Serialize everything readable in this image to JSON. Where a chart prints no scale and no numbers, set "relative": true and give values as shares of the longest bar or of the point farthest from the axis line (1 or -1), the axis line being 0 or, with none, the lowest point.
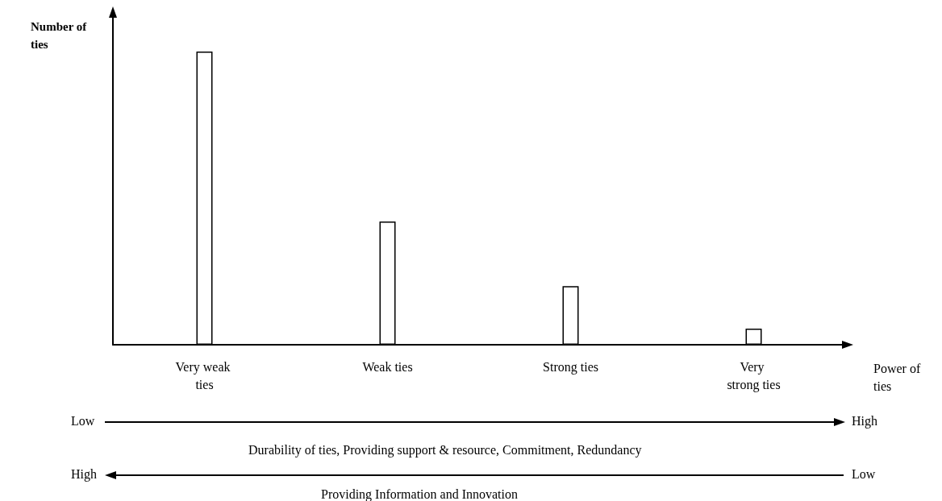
{
  "chart_data": {
    "type": "bar",
    "relative": true,
    "xlabel": "Power of ties",
    "ylabel": "Number of ties",
    "categories": [
      "Very weak ties",
      "Weak ties",
      "Strong ties",
      "Very strong ties"
    ],
    "values": [
      1,
      0.42,
      0.2,
      0.055
    ],
    "color": "#ffffff",
    "grid": false,
    "annotations": [
      "Low",
      "High",
      "Durability of ties, Providing support & resource, Commitment, Redundancy",
      "High",
      "Low",
      "Providing Information and Innovation"
    ]
  }
}
